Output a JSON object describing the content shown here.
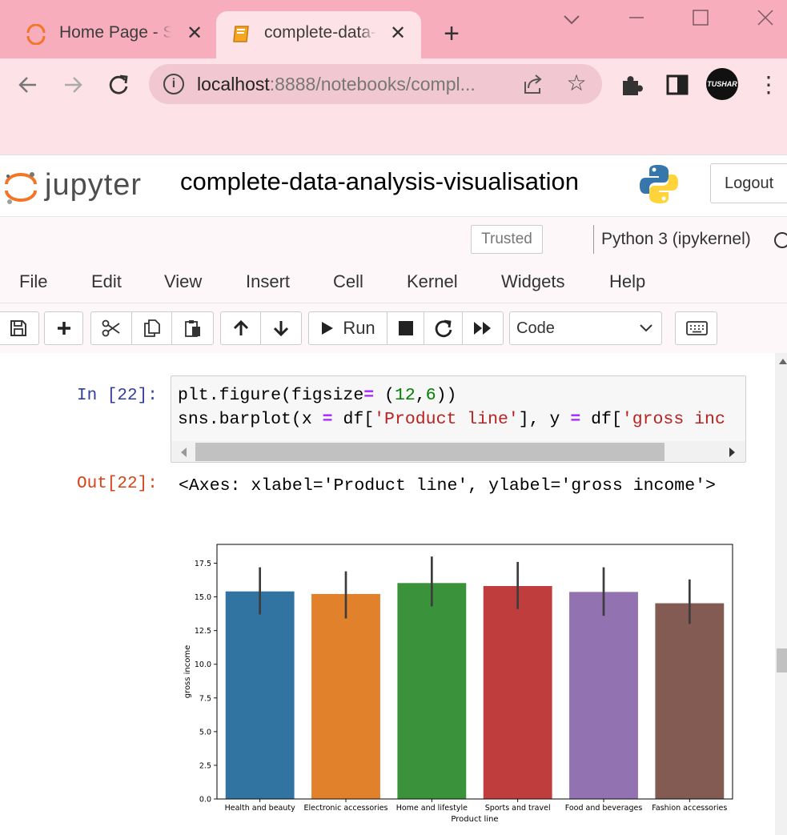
{
  "browser": {
    "tabs": [
      {
        "title": "Home Page - Select or create a notebook",
        "active": false
      },
      {
        "title": "complete-data-analysis-visualisation",
        "active": true
      }
    ],
    "url_host": "localhost",
    "url_rest": ":8888/notebooks/compl...",
    "avatar_text": "TUSHAR",
    "colors": {
      "tabstrip": "#f7adbc",
      "toolbar": "#fde2e7"
    }
  },
  "jupyter": {
    "logo_text": "jupyter",
    "notebook_name": "complete-data-analysis-visualisation",
    "logout_label": "Logout",
    "trusted_label": "Trusted",
    "kernel_label": "Python 3 (ipykernel)",
    "menu": [
      "File",
      "Edit",
      "View",
      "Insert",
      "Cell",
      "Kernel",
      "Widgets",
      "Help"
    ],
    "run_label": "Run",
    "cell_type": "Code"
  },
  "cell": {
    "in_prompt": "In [22]:",
    "out_prompt": "Out[22]:",
    "output_text": "<Axes: xlabel='Product line', ylabel='gross income'>"
  },
  "chart_data": {
    "type": "bar",
    "title": "",
    "xlabel": "Product line",
    "ylabel": "gross income",
    "ylim": [
      0,
      18.9
    ],
    "yticks": [
      "0.0",
      "2.5",
      "5.0",
      "7.5",
      "10.0",
      "12.5",
      "15.0",
      "17.5"
    ],
    "categories": [
      "Health and beauty",
      "Electronic accessories",
      "Home and lifestyle",
      "Sports and travel",
      "Food and beverages",
      "Fashion accessories"
    ],
    "values": [
      15.41,
      15.22,
      16.03,
      15.81,
      15.37,
      14.53
    ],
    "ci_low": [
      13.7,
      13.4,
      14.3,
      14.1,
      13.6,
      13.0
    ],
    "ci_high": [
      17.2,
      16.9,
      18.0,
      17.6,
      17.2,
      16.3
    ],
    "colors": [
      "#3274a1",
      "#e1812c",
      "#3a923a",
      "#c03d3e",
      "#9372b2",
      "#845b53"
    ]
  }
}
